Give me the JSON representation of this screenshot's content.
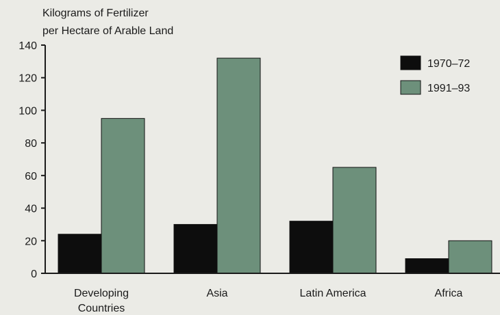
{
  "chart_data": {
    "type": "bar",
    "ylabel": "Kilograms of Fertilizer per Hectare of Arable Land",
    "ylabel_lines": [
      "Kilograms of Fertilizer",
      "per Hectare of Arable Land"
    ],
    "categories": [
      "Developing Countries",
      "Asia",
      "Latin America",
      "Africa"
    ],
    "category_lines": [
      [
        "Developing",
        "Countries"
      ],
      [
        "Asia"
      ],
      [
        "Latin America"
      ],
      [
        "Africa"
      ]
    ],
    "series": [
      {
        "name": "1970–72",
        "values": [
          24,
          30,
          32,
          9
        ],
        "color": "#0d0d0d"
      },
      {
        "name": "1991–93",
        "values": [
          95,
          132,
          65,
          20
        ],
        "color": "#6d907b"
      }
    ],
    "ylim": [
      0,
      140
    ],
    "yticks": [
      0,
      20,
      40,
      60,
      80,
      100,
      120,
      140
    ],
    "legend_position": "top-right",
    "grid": false
  }
}
